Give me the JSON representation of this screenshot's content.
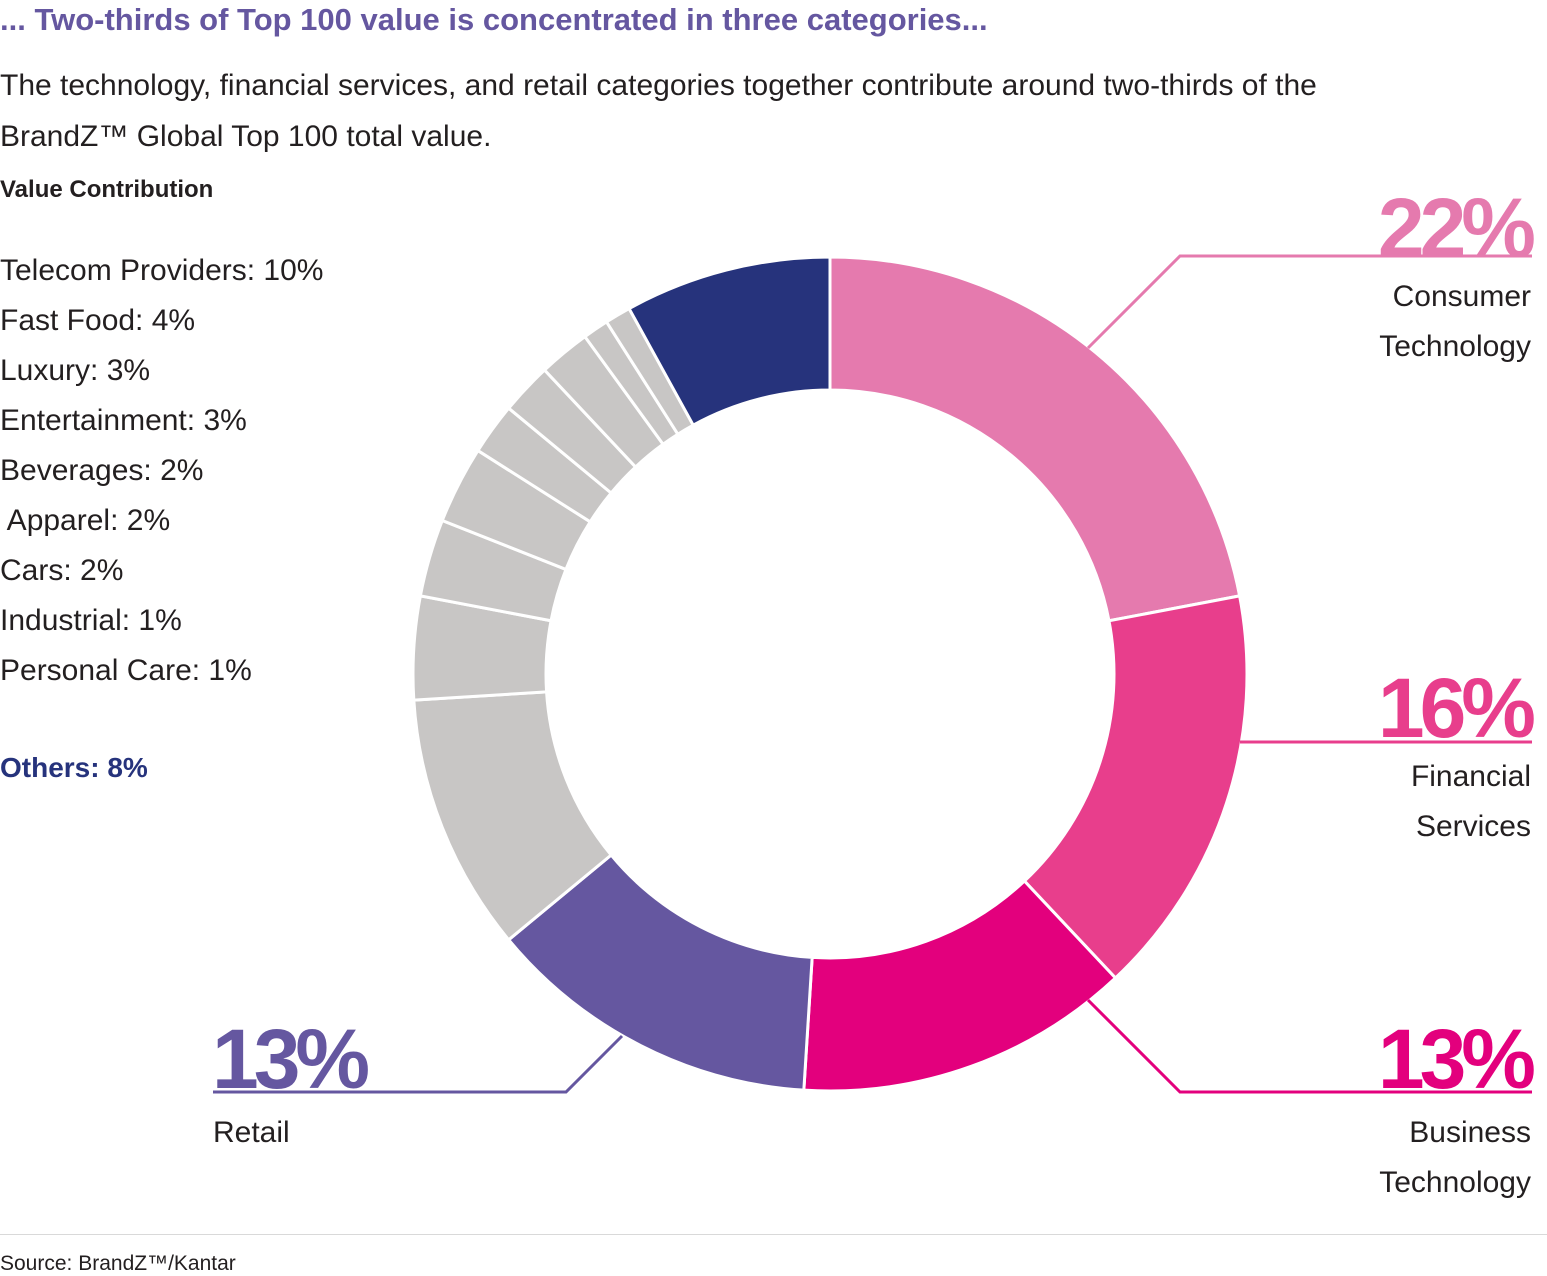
{
  "header": {
    "title": "... Two-thirds of Top 100 value is concentrated in three categories...",
    "subtitle": "The technology, financial services, and retail categories together contribute around two-thirds of the BrandZ™ Global Top 100 total value."
  },
  "legend": {
    "heading": "Value Contribution",
    "items": [
      "Telecom Providers: 10%",
      "Fast Food: 4%",
      "Luxury: 3%",
      "Entertainment: 3%",
      "Beverages: 2%",
      " Apparel: 2%",
      "Cars: 2%",
      "Industrial: 1%",
      "Personal Care: 1%"
    ],
    "others": "Others: 8%"
  },
  "callouts": {
    "consumer_technology": {
      "pct": "22%",
      "line1": "Consumer",
      "line2": "Technology"
    },
    "financial_services": {
      "pct": "16%",
      "line1": "Financial",
      "line2": "Services"
    },
    "business_technology": {
      "pct": "13%",
      "line1": "Business",
      "line2": "Technology"
    },
    "retail": {
      "pct": "13%",
      "line1": "Retail"
    }
  },
  "source": "Source: BrandZ™/Kantar",
  "colors": {
    "consumer_technology": "#e57aae",
    "financial_services": "#e83e8c",
    "business_technology": "#e3007d",
    "retail": "#6557a0",
    "others": "#26337c",
    "grey_categories": "#c8c6c5",
    "title": "#6557a0"
  },
  "chart_data": {
    "type": "pie",
    "variant": "donut",
    "title": "Value Contribution",
    "start": "12 o'clock, clockwise",
    "slices": [
      {
        "label": "Consumer Technology",
        "value": 22,
        "color": "#e57aae"
      },
      {
        "label": "Financial Services",
        "value": 16,
        "color": "#e83e8c"
      },
      {
        "label": "Business Technology",
        "value": 13,
        "color": "#e3007d"
      },
      {
        "label": "Retail",
        "value": 13,
        "color": "#6557a0"
      },
      {
        "label": "Telecom Providers",
        "value": 10,
        "color": "#c8c6c5"
      },
      {
        "label": "Fast Food",
        "value": 4,
        "color": "#c8c6c5"
      },
      {
        "label": "Luxury",
        "value": 3,
        "color": "#c8c6c5"
      },
      {
        "label": "Entertainment",
        "value": 3,
        "color": "#c8c6c5"
      },
      {
        "label": "Beverages",
        "value": 2,
        "color": "#c8c6c5"
      },
      {
        "label": "Apparel",
        "value": 2,
        "color": "#c8c6c5"
      },
      {
        "label": "Cars",
        "value": 2,
        "color": "#c8c6c5"
      },
      {
        "label": "Industrial",
        "value": 1,
        "color": "#c8c6c5"
      },
      {
        "label": "Personal Care",
        "value": 1,
        "color": "#c8c6c5"
      },
      {
        "label": "Others",
        "value": 8,
        "color": "#26337c"
      }
    ]
  }
}
